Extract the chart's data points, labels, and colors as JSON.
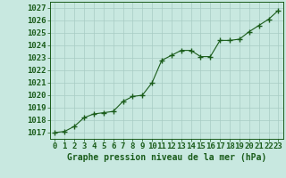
{
  "x": [
    0,
    1,
    2,
    3,
    4,
    5,
    6,
    7,
    8,
    9,
    10,
    11,
    12,
    13,
    14,
    15,
    16,
    17,
    18,
    19,
    20,
    21,
    22,
    23
  ],
  "y": [
    1017.0,
    1017.1,
    1017.5,
    1018.2,
    1018.5,
    1018.6,
    1018.7,
    1019.5,
    1019.9,
    1020.0,
    1021.0,
    1022.8,
    1023.2,
    1023.6,
    1023.6,
    1023.1,
    1023.1,
    1024.4,
    1024.4,
    1024.5,
    1025.1,
    1025.6,
    1026.1,
    1026.8
  ],
  "ylim": [
    1016.5,
    1027.5
  ],
  "yticks": [
    1017,
    1018,
    1019,
    1020,
    1021,
    1022,
    1023,
    1024,
    1025,
    1026,
    1027
  ],
  "xlim": [
    -0.5,
    23.5
  ],
  "xticks": [
    0,
    1,
    2,
    3,
    4,
    5,
    6,
    7,
    8,
    9,
    10,
    11,
    12,
    13,
    14,
    15,
    16,
    17,
    18,
    19,
    20,
    21,
    22,
    23
  ],
  "xlabel": "Graphe pression niveau de la mer (hPa)",
  "line_color": "#1a5c1a",
  "marker_color": "#1a5c1a",
  "bg_color": "#c8e8e0",
  "grid_color": "#a8ccc4",
  "tick_color": "#1a5c1a",
  "label_color": "#1a5c1a",
  "font_size_xlabel": 7,
  "font_size_ticks": 6.5
}
